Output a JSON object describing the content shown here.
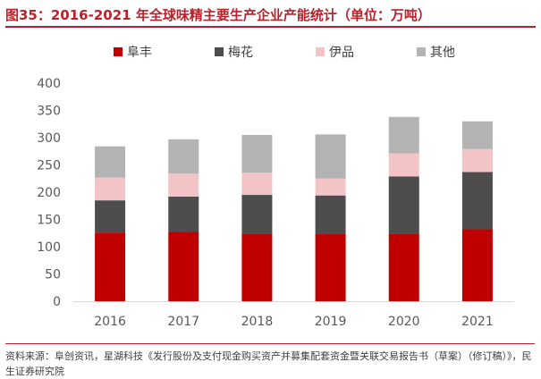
{
  "title": "图35：2016-2021 年全球味精主要生产企业产能统计（单位：万吨）",
  "source": "资料来源：阜创资讯，星湖科技《发行股份及支付现金购买资产并募集配套资金暨关联交易报告书（草案）（修订稿）》，民生证券研究院",
  "colors": {
    "title": "#b8222b",
    "rule": "#b8222b"
  },
  "chart_data": {
    "type": "bar",
    "stacked": true,
    "categories": [
      "2016",
      "2017",
      "2018",
      "2019",
      "2020",
      "2021"
    ],
    "series": [
      {
        "name": "阜丰",
        "color": "#c00000",
        "values": [
          126,
          127,
          124,
          123,
          124,
          132
        ]
      },
      {
        "name": "梅花",
        "color": "#4d4d4d",
        "values": [
          59,
          65,
          71,
          71,
          105,
          105
        ]
      },
      {
        "name": "伊品",
        "color": "#f2c4c6",
        "values": [
          42,
          42,
          41,
          31,
          42,
          42
        ]
      },
      {
        "name": "其他",
        "color": "#b3b3b3",
        "values": [
          57,
          63,
          69,
          81,
          67,
          51
        ]
      }
    ],
    "ylim": [
      0,
      400
    ],
    "yticks": [
      0,
      50,
      100,
      150,
      200,
      250,
      300,
      350,
      400
    ],
    "grid": false,
    "legend": "top"
  }
}
